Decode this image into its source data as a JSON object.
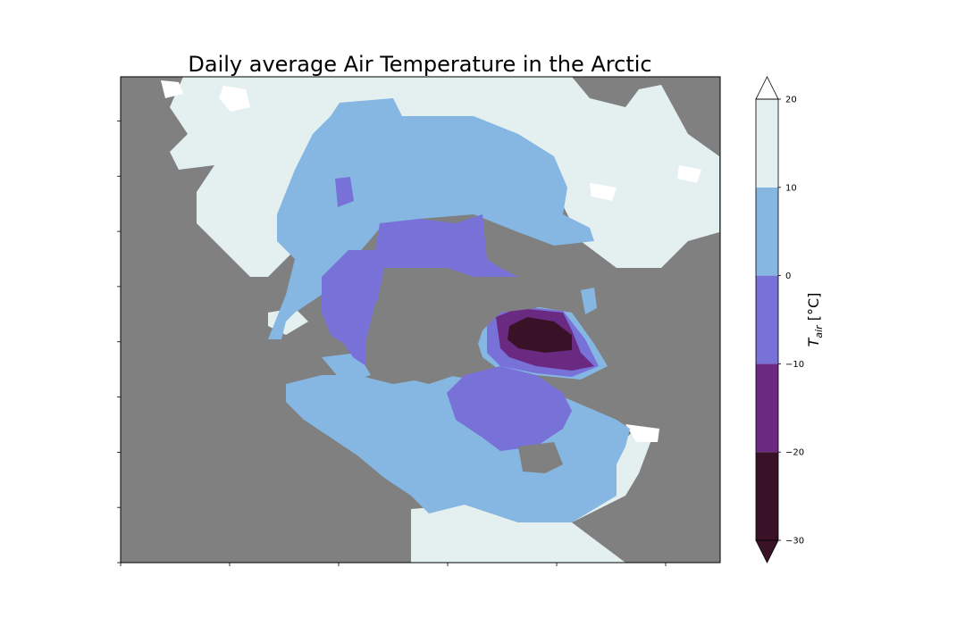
{
  "chart_data": {
    "type": "heatmap",
    "title": "Daily average Air Temperature in the Arctic",
    "xlabel": "",
    "ylabel": "",
    "grid": false,
    "map_colors": {
      "land": "#808080",
      "water_high": "#ffffff"
    },
    "colorbar": {
      "label_main": "T",
      "label_sub": "air",
      "label_unit": " [°C]",
      "ticks": [
        "−30",
        "−20",
        "−10",
        "0",
        "10",
        "20"
      ],
      "levels": [
        -30,
        -20,
        -10,
        0,
        10,
        20
      ],
      "extend": "both",
      "bins": [
        {
          "from": -30,
          "to": -20,
          "color": "#3a1228"
        },
        {
          "from": -20,
          "to": -10,
          "color": "#6b2a82"
        },
        {
          "from": -10,
          "to": 0,
          "color": "#7872d8"
        },
        {
          "from": 0,
          "to": 10,
          "color": "#85b7e2"
        },
        {
          "from": 10,
          "to": 20,
          "color": "#e4f0f0"
        }
      ],
      "under_color": "#3a1228",
      "over_color": "#ffffff"
    },
    "x_tick_count": 6,
    "y_tick_count": 9
  }
}
